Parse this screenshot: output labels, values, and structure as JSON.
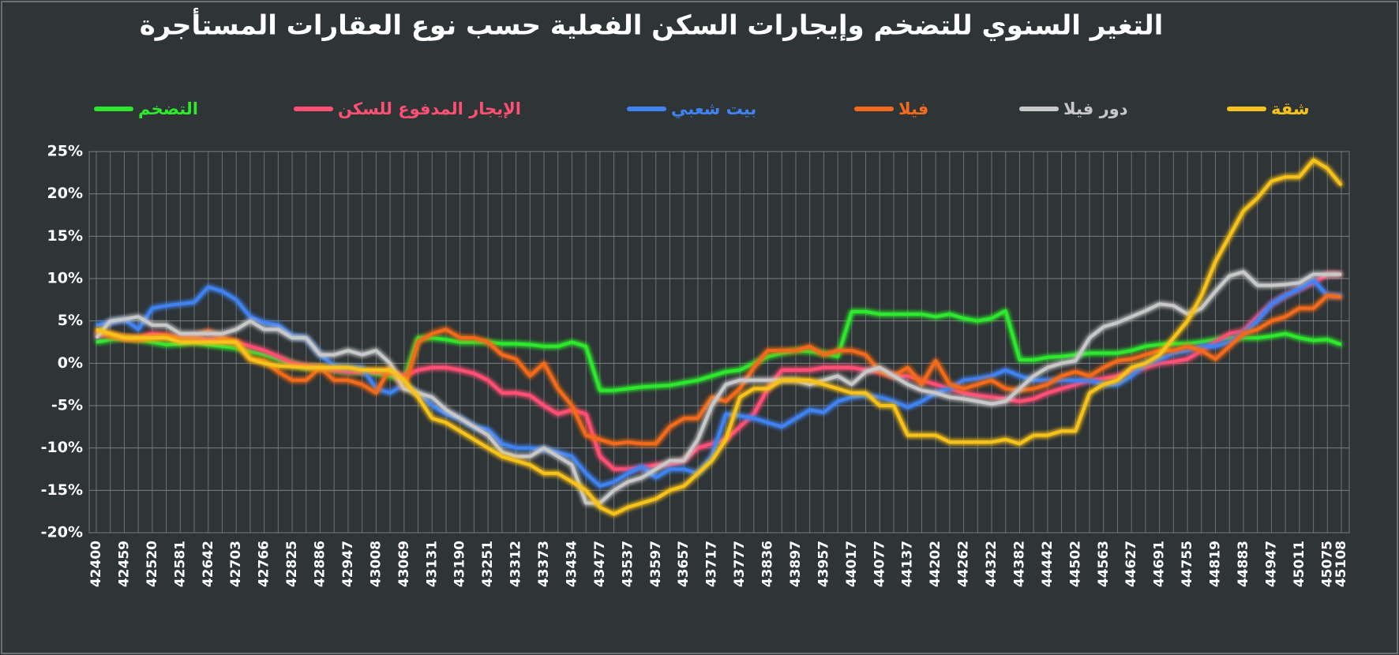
{
  "chart_data": {
    "type": "line",
    "title": "التغير السنوي للتضخم وإيجارات السكن الفعلية حسب نوع العقارات المستأجرة",
    "categories": [
      "42400",
      null,
      "42459",
      null,
      "42520",
      null,
      "42581",
      null,
      "42642",
      null,
      "42703",
      null,
      "42766",
      null,
      "42825",
      null,
      "42886",
      null,
      "42947",
      null,
      "43008",
      null,
      "43069",
      null,
      "43131",
      null,
      "43190",
      null,
      "43251",
      null,
      "43312",
      null,
      "43373",
      null,
      "43434",
      null,
      "43477",
      null,
      "43537",
      null,
      "43597",
      null,
      "43657",
      null,
      "43717",
      null,
      "43777",
      null,
      "43836",
      null,
      "43897",
      null,
      "43957",
      null,
      "44017",
      null,
      "44077",
      null,
      "44137",
      null,
      "44202",
      null,
      "44262",
      null,
      "44322",
      null,
      "44382",
      null,
      "44442",
      null,
      "44502",
      null,
      "44563",
      null,
      "44627",
      null,
      "44691",
      null,
      "44755",
      null,
      "44819",
      null,
      "44883",
      null,
      "44947",
      null,
      "45011",
      null,
      "45075",
      "45108"
    ],
    "series": [
      {
        "name": "التضخم",
        "color": "#2ee82e",
        "values": [
          2.5,
          2.8,
          3.0,
          2.8,
          2.5,
          2.2,
          2.3,
          2.5,
          2.2,
          2.0,
          1.8,
          1.4,
          1.0,
          0.5,
          0.0,
          -0.5,
          -0.5,
          -0.8,
          -1.0,
          -1.0,
          -1.2,
          -1.5,
          -2.0,
          3.0,
          3.0,
          2.8,
          2.5,
          2.5,
          2.5,
          2.3,
          2.3,
          2.2,
          2.0,
          2.0,
          2.5,
          2.0,
          -3.2,
          -3.2,
          -3.0,
          -2.8,
          -2.7,
          -2.6,
          -2.3,
          -2.0,
          -1.5,
          -1.0,
          -0.8,
          0.0,
          0.8,
          1.2,
          1.5,
          1.4,
          1.2,
          0.8,
          6.1,
          6.1,
          5.8,
          5.8,
          5.8,
          5.8,
          5.5,
          5.8,
          5.3,
          5.0,
          5.3,
          6.2,
          0.4,
          0.4,
          0.7,
          0.8,
          1.0,
          1.2,
          1.2,
          1.2,
          1.5,
          2.0,
          2.2,
          2.3,
          2.3,
          2.5,
          2.8,
          3.0,
          3.0,
          3.0,
          3.2,
          3.5,
          3.0,
          2.7,
          2.8,
          2.2
        ]
      },
      {
        "name": "الإيجار المدفوع للسكن",
        "color": "#ff4f74",
        "values": [
          3.5,
          3.3,
          3.0,
          3.0,
          3.5,
          3.3,
          3.0,
          3.0,
          2.8,
          2.8,
          2.5,
          2.0,
          1.5,
          0.8,
          0.0,
          -0.3,
          -0.5,
          -0.8,
          -1.0,
          -1.0,
          -1.0,
          -1.0,
          -1.5,
          -0.8,
          -0.5,
          -0.5,
          -0.8,
          -1.2,
          -2.0,
          -3.5,
          -3.5,
          -3.8,
          -5.0,
          -6.0,
          -5.5,
          -6.0,
          -11.0,
          -12.5,
          -12.5,
          -12.3,
          -12.0,
          -12.0,
          -11.5,
          -10.0,
          -9.5,
          -9.0,
          -7.5,
          -6.0,
          -3.0,
          -0.8,
          -0.8,
          -0.8,
          -0.5,
          -0.5,
          -0.5,
          -0.8,
          -1.0,
          -1.5,
          -1.5,
          -2.0,
          -2.5,
          -3.0,
          -3.5,
          -3.8,
          -4.0,
          -4.2,
          -4.5,
          -4.2,
          -3.5,
          -3.0,
          -2.5,
          -2.0,
          -1.8,
          -1.5,
          -1.0,
          -0.5,
          0.0,
          0.2,
          0.5,
          1.5,
          2.5,
          3.5,
          3.8,
          5.5,
          7.0,
          8.0,
          8.8,
          9.5,
          10.5,
          10.5
        ]
      },
      {
        "name": "بيت شعبي",
        "color": "#3f82f0",
        "values": [
          4.5,
          4.8,
          5.2,
          4.0,
          6.5,
          6.8,
          7.0,
          7.2,
          9.0,
          8.5,
          7.5,
          5.5,
          4.8,
          4.5,
          3.2,
          3.0,
          1.0,
          -0.3,
          -0.5,
          -0.5,
          -3.0,
          -3.5,
          -2.5,
          -3.5,
          -5.0,
          -6.0,
          -6.5,
          -7.5,
          -7.8,
          -9.5,
          -10.0,
          -10.0,
          -10.2,
          -10.5,
          -11.0,
          -13.0,
          -14.5,
          -14.0,
          -13.0,
          -12.2,
          -13.5,
          -12.5,
          -12.5,
          -13.0,
          -11.0,
          -6.0,
          -6.2,
          -6.5,
          -7.0,
          -7.5,
          -6.5,
          -5.5,
          -5.8,
          -4.5,
          -4.0,
          -3.8,
          -4.0,
          -4.5,
          -5.2,
          -4.5,
          -3.5,
          -3.0,
          -2.0,
          -1.8,
          -1.5,
          -0.8,
          -1.5,
          -2.0,
          -2.0,
          -2.0,
          -2.0,
          -2.0,
          -2.5,
          -2.5,
          -1.5,
          0.0,
          0.5,
          1.2,
          1.5,
          2.0,
          2.0,
          2.5,
          3.5,
          5.0,
          7.0,
          8.0,
          8.8,
          9.8,
          8.0,
          8.0
        ]
      },
      {
        "name": "فيلا",
        "color": "#f26b1d",
        "values": [
          3.8,
          3.3,
          3.0,
          2.8,
          3.0,
          3.2,
          3.0,
          3.2,
          3.8,
          3.0,
          2.5,
          0.5,
          0.3,
          -1.0,
          -2.0,
          -2.0,
          -0.5,
          -2.0,
          -2.0,
          -2.5,
          -3.5,
          -0.5,
          -3.0,
          2.5,
          3.5,
          4.0,
          3.0,
          3.0,
          2.5,
          1.0,
          0.5,
          -1.5,
          0.0,
          -3.0,
          -5.0,
          -8.5,
          -9.0,
          -9.5,
          -9.3,
          -9.5,
          -9.5,
          -7.5,
          -6.5,
          -6.5,
          -4.0,
          -4.5,
          -3.0,
          -0.5,
          1.5,
          1.5,
          1.5,
          2.0,
          1.0,
          1.5,
          1.5,
          1.0,
          -1.0,
          -1.5,
          -0.5,
          -2.5,
          0.3,
          -2.5,
          -3.0,
          -2.5,
          -2.0,
          -3.0,
          -3.2,
          -3.0,
          -2.5,
          -1.5,
          -1.0,
          -1.5,
          -0.5,
          0.3,
          0.5,
          1.0,
          1.5,
          1.5,
          2.0,
          1.5,
          0.5,
          2.0,
          3.5,
          4.0,
          5.0,
          5.5,
          6.5,
          6.5,
          8.0,
          7.8
        ]
      },
      {
        "name": "دور فيلا",
        "color": "#c8c8c8",
        "values": [
          3.0,
          5.0,
          5.2,
          5.5,
          4.5,
          4.5,
          3.5,
          3.5,
          3.5,
          3.5,
          4.0,
          5.0,
          4.0,
          4.0,
          3.0,
          3.0,
          1.0,
          1.0,
          1.5,
          1.0,
          1.5,
          0.0,
          -3.0,
          -3.5,
          -4.0,
          -5.5,
          -6.5,
          -7.5,
          -8.5,
          -10.5,
          -11.0,
          -11.0,
          -10.0,
          -11.0,
          -12.0,
          -16.5,
          -16.5,
          -15.0,
          -14.0,
          -13.5,
          -12.5,
          -11.5,
          -11.5,
          -9.0,
          -5.0,
          -2.5,
          -2.0,
          -2.0,
          -2.0,
          -2.0,
          -2.0,
          -2.5,
          -2.0,
          -1.5,
          -2.5,
          -1.0,
          -0.5,
          -1.5,
          -2.5,
          -3.2,
          -3.5,
          -4.0,
          -4.2,
          -4.5,
          -4.8,
          -4.5,
          -3.0,
          -1.5,
          -0.5,
          0.0,
          0.3,
          3.0,
          4.3,
          4.8,
          5.5,
          6.2,
          7.0,
          6.8,
          5.8,
          6.5,
          8.5,
          10.3,
          10.8,
          9.2,
          9.2,
          9.3,
          9.5,
          10.5,
          10.5,
          10.5
        ]
      },
      {
        "name": "شقة",
        "color": "#f7c21b",
        "values": [
          4.0,
          3.5,
          3.0,
          3.0,
          3.0,
          3.0,
          2.5,
          2.5,
          2.5,
          2.5,
          2.5,
          0.5,
          0.0,
          -0.3,
          -0.4,
          -0.5,
          -0.5,
          -0.5,
          -0.5,
          -0.8,
          -0.8,
          -0.8,
          -2.0,
          -4.0,
          -6.5,
          -7.0,
          -8.0,
          -9.0,
          -10.0,
          -11.0,
          -11.5,
          -12.0,
          -13.0,
          -13.0,
          -14.0,
          -15.0,
          -17.0,
          -17.8,
          -17.0,
          -16.5,
          -16.0,
          -15.0,
          -14.5,
          -13.0,
          -11.5,
          -9.0,
          -4.0,
          -3.0,
          -3.0,
          -2.0,
          -2.0,
          -2.0,
          -2.5,
          -3.0,
          -3.5,
          -3.5,
          -5.0,
          -5.0,
          -8.5,
          -8.5,
          -8.5,
          -9.3,
          -9.3,
          -9.3,
          -9.3,
          -9.0,
          -9.5,
          -8.5,
          -8.5,
          -8.0,
          -8.0,
          -3.5,
          -2.5,
          -2.0,
          -0.5,
          0.0,
          1.0,
          3.0,
          5.0,
          8.0,
          12.0,
          15.0,
          18.0,
          19.5,
          21.5,
          22.0,
          22.0,
          24.0,
          23.0,
          21.0
        ]
      }
    ],
    "ylim": [
      -20,
      25
    ],
    "yticks": [
      {
        "value": -20,
        "label": "-20%"
      },
      {
        "value": -15,
        "label": "-15%"
      },
      {
        "value": -10,
        "label": "-10%"
      },
      {
        "value": -5,
        "label": "-5%"
      },
      {
        "value": 0,
        "label": "0%"
      },
      {
        "value": 5,
        "label": "5%"
      },
      {
        "value": 10,
        "label": "10%"
      },
      {
        "value": 15,
        "label": "15%"
      },
      {
        "value": 20,
        "label": "20%"
      },
      {
        "value": 25,
        "label": "25%"
      }
    ],
    "grid": true
  }
}
